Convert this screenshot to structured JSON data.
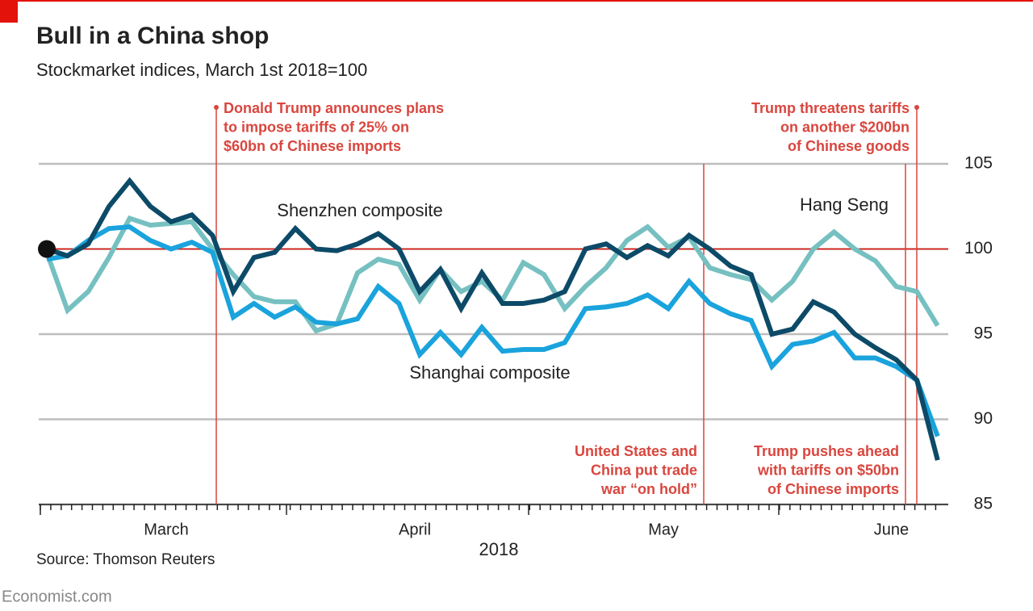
{
  "chart_data": {
    "type": "line",
    "title": "Bull in a China shop",
    "subtitle": "Stockmarket indices, March 1st 2018=100",
    "x_label": "2018",
    "source": "Source: Thomson Reuters",
    "footer": "Economist.com",
    "categories": [
      null,
      null,
      null,
      null,
      null,
      null,
      "March",
      null,
      null,
      null,
      null,
      null,
      null,
      null,
      null,
      null,
      null,
      null,
      "April",
      null,
      null,
      null,
      null,
      null,
      null,
      null,
      null,
      null,
      null,
      null,
      "May",
      null,
      null,
      null,
      null,
      null,
      null,
      null,
      null,
      null,
      null,
      "June",
      null,
      null
    ],
    "ylim": [
      85,
      105
    ],
    "yticks": [
      85,
      90,
      95,
      100,
      105
    ],
    "grid": true,
    "baseline": 100,
    "series": [
      {
        "name": "Hang Seng",
        "color": "#76c0c1",
        "values": [
          99.8,
          96.4,
          97.5,
          99.5,
          101.8,
          101.4,
          101.5,
          101.6,
          100.0,
          98.5,
          97.2,
          96.9,
          96.9,
          95.2,
          95.6,
          98.6,
          99.4,
          99.1,
          97.0,
          98.8,
          97.5,
          98.1,
          97.0,
          99.2,
          98.5,
          96.5,
          97.8,
          98.9,
          100.5,
          101.3,
          100.1,
          100.7,
          98.9,
          98.5,
          98.2,
          97.0,
          98.1,
          100.0,
          101.0,
          100.0,
          99.3,
          97.8,
          97.5,
          95.5
        ]
      },
      {
        "name": "Shanghai composite",
        "color": "#1aa3dc",
        "values": [
          99.4,
          99.6,
          100.5,
          101.2,
          101.3,
          100.5,
          100.0,
          100.4,
          99.8,
          96.0,
          96.8,
          96.0,
          96.6,
          95.7,
          95.6,
          95.9,
          97.8,
          96.8,
          93.8,
          95.1,
          93.8,
          95.4,
          94.0,
          94.1,
          94.1,
          94.5,
          96.5,
          96.6,
          96.8,
          97.3,
          96.5,
          98.1,
          96.8,
          96.2,
          95.8,
          93.1,
          94.4,
          94.6,
          95.1,
          93.6,
          93.6,
          93.1,
          92.3,
          89.0
        ]
      },
      {
        "name": "Shenzhen composite",
        "color": "#0c4a68",
        "values": [
          100,
          99.6,
          100.3,
          102.5,
          104.0,
          102.5,
          101.6,
          102.0,
          100.8,
          97.5,
          99.5,
          99.8,
          101.2,
          100.0,
          99.9,
          100.3,
          100.9,
          100.0,
          97.5,
          98.8,
          96.5,
          98.6,
          96.8,
          96.8,
          97.0,
          97.5,
          100.0,
          100.3,
          99.5,
          100.2,
          99.6,
          100.8,
          100.0,
          99.0,
          98.5,
          95.0,
          95.3,
          96.9,
          96.3,
          95.0,
          94.2,
          93.5,
          92.3,
          87.6
        ]
      }
    ],
    "annotations": [
      {
        "text": [
          "Donald Trump announces plans",
          "to impose tariffs of 25% on",
          "$60bn of Chinese imports"
        ]
      },
      {
        "text": [
          "United States and",
          "China put trade",
          "war “on hold”"
        ]
      },
      {
        "text": [
          "Trump pushes ahead",
          "with tariffs on $50bn",
          "of Chinese imports"
        ]
      },
      {
        "text": [
          "Trump threatens tariffs",
          "on another $200bn",
          "of Chinese goods"
        ]
      }
    ]
  }
}
